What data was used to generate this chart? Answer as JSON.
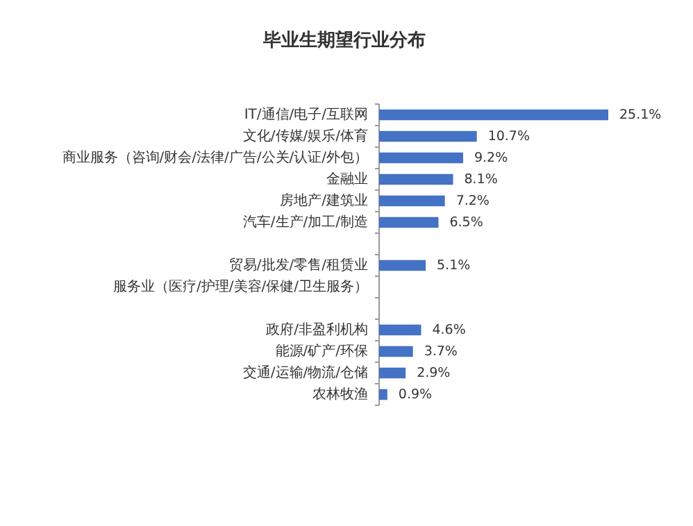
{
  "chart_data": {
    "type": "bar",
    "orientation": "horizontal",
    "title": "毕业生期望行业分布",
    "categories": [
      "IT/通信/电子/互联网",
      "文化/传媒/娱乐/体育",
      "商业服务（咨询/财会/法律/广告/公关/认证/外包）",
      "金融业",
      "房地产/建筑业",
      "汽车/生产/加工/制造",
      null,
      "贸易/批发/零售/租赁业",
      "服务业（医疗/护理/美容/保健/卫生服务）",
      null,
      "政府/非盈利机构",
      "能源/矿产/环保",
      "交通/运输/物流/仓储",
      "农林牧渔"
    ],
    "values": [
      25.1,
      10.7,
      9.2,
      8.1,
      7.2,
      6.5,
      null,
      5.1,
      null,
      null,
      4.6,
      3.7,
      2.9,
      0.9
    ],
    "value_labels": [
      "25.1%",
      "10.7%",
      "9.2%",
      "8.1%",
      "7.2%",
      "6.5%",
      null,
      "5.1%",
      null,
      null,
      "4.6%",
      "3.7%",
      "2.9%",
      "0.9%"
    ],
    "color": "#4472c4"
  }
}
